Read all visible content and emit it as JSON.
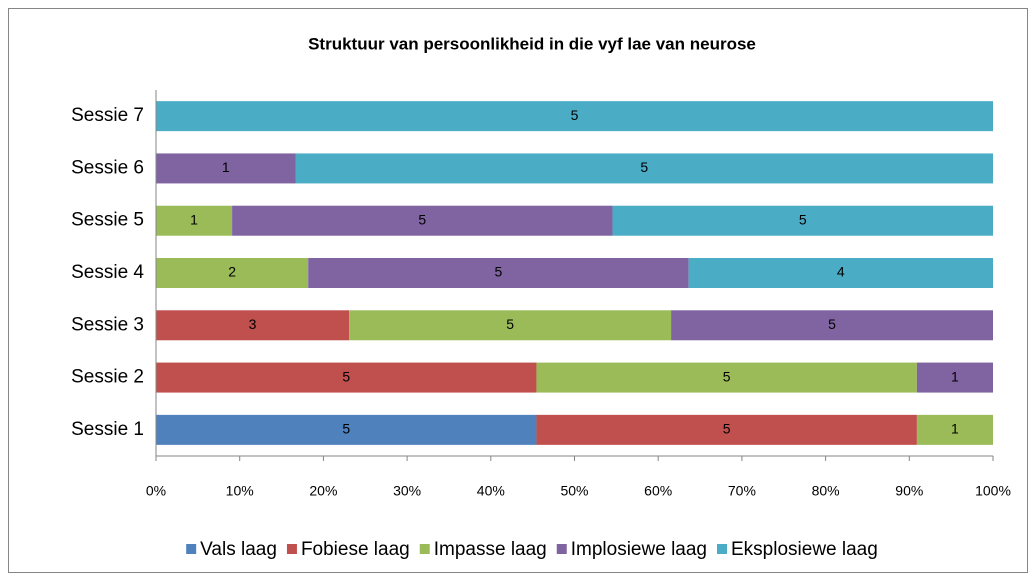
{
  "chart_data": {
    "type": "bar",
    "orientation": "horizontal",
    "stacking": "percent",
    "title": "Struktuur van persoonlikheid in die vyf lae van neurose",
    "categories": [
      "Sessie 1",
      "Sessie 2",
      "Sessie 3",
      "Sessie 4",
      "Sessie 5",
      "Sessie 6",
      "Sessie 7"
    ],
    "series": [
      {
        "name": "Vals laag",
        "color": "#4f81bd",
        "values": [
          5,
          null,
          null,
          null,
          null,
          null,
          null
        ]
      },
      {
        "name": "Fobiese laag",
        "color": "#c0504d",
        "values": [
          5,
          5,
          3,
          null,
          null,
          null,
          null
        ]
      },
      {
        "name": "Impasse laag",
        "color": "#9bbb59",
        "values": [
          1,
          5,
          5,
          2,
          1,
          null,
          null
        ]
      },
      {
        "name": "Implosiewe laag",
        "color": "#8064a2",
        "values": [
          null,
          1,
          5,
          5,
          5,
          1,
          null
        ]
      },
      {
        "name": "Eksplosiewe laag",
        "color": "#4bacc6",
        "values": [
          null,
          null,
          null,
          4,
          5,
          5,
          5
        ]
      }
    ],
    "xlim": [
      0,
      100
    ],
    "xticks": [
      {
        "value": 0,
        "label": "0%"
      },
      {
        "value": 10,
        "label": "10%"
      },
      {
        "value": 20,
        "label": "20%"
      },
      {
        "value": 30,
        "label": "30%"
      },
      {
        "value": 40,
        "label": "40%"
      },
      {
        "value": 50,
        "label": "50%"
      },
      {
        "value": 60,
        "label": "60%"
      },
      {
        "value": 70,
        "label": "70%"
      },
      {
        "value": 80,
        "label": "80%"
      },
      {
        "value": 90,
        "label": "90%"
      },
      {
        "value": 100,
        "label": "100%"
      }
    ],
    "grid": false,
    "legend": "bottom"
  }
}
